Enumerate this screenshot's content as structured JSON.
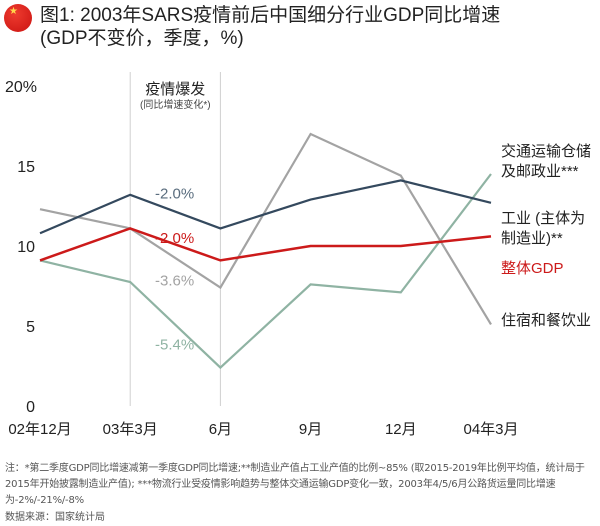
{
  "header": {
    "flag_icon": "china-flag-icon",
    "title": "图1: 2003年SARS疫情前后中国细分行业GDP同比增速",
    "subtitle": "(GDP不变价，季度，%)"
  },
  "chart_data": {
    "type": "line",
    "title": "图1: 2003年SARS疫情前后中国细分行业GDP同比增速",
    "subtitle": "(GDP不变价，季度，%)",
    "xlabel": "",
    "ylabel": "",
    "categories": [
      "02年12月",
      "03年3月",
      "6月",
      "9月",
      "12月",
      "04年3月"
    ],
    "ylim": [
      0,
      20
    ],
    "yticks": [
      0,
      5,
      10,
      15,
      20
    ],
    "ytick_labels": [
      "0",
      "5",
      "10",
      "15",
      "20%"
    ],
    "grid": false,
    "legend": "right (inline labels at line ends)",
    "highlight_band": {
      "from": "03年3月",
      "to": "6月",
      "label": "疫情爆发",
      "sublabel": "(同比增速变化*)"
    },
    "series": [
      {
        "name": "交通运输仓储及邮政业***",
        "label_lines": [
          "交通运输仓储",
          "及邮政业***"
        ],
        "color": "#8fb3a3",
        "values": [
          9.1,
          7.75,
          2.4,
          7.6,
          7.1,
          14.5
        ],
        "annotation": "-5.4%"
      },
      {
        "name": "工业 (主体为制造业)**",
        "label_lines": [
          "工业 (主体为",
          "制造业)**"
        ],
        "color": "#34495e",
        "values": [
          10.8,
          13.2,
          11.1,
          12.9,
          14.1,
          12.7
        ],
        "annotation": "-2.0%"
      },
      {
        "name": "整体GDP",
        "label_lines": [
          "整体GDP"
        ],
        "color": "#cc1a1a",
        "values": [
          9.1,
          11.1,
          9.1,
          10.0,
          10.0,
          10.6
        ],
        "annotation": "-2.0%"
      },
      {
        "name": "住宿和餐饮业",
        "label_lines": [
          "住宿和餐饮业"
        ],
        "color": "#a3a3a3",
        "values": [
          12.3,
          11.1,
          7.4,
          17.0,
          14.4,
          5.1
        ],
        "annotation": "-3.6%"
      }
    ]
  },
  "footnote": {
    "note": "注：*第二季度GDP同比增速减第一季度GDP同比增速;**制造业产值占工业产值的比例~85% (取2015-2019年比例平均值，统计局于2015年开始披露制造业产值); ***物流行业受疫情影响趋势与整体交通运输GDP变化一致，2003年4/5/6月公路货运量同比增速为-2%/-21%/-8%",
    "source": "数据来源：国家统计局"
  }
}
